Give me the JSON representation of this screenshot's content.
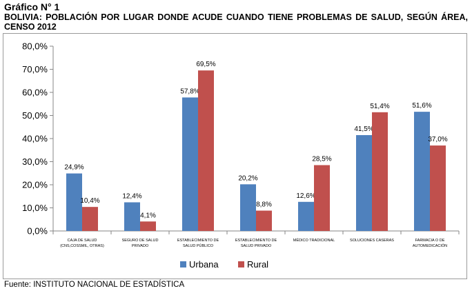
{
  "header": {
    "label": "Gráfico N° 1",
    "title": "BOLIVIA: POBLACIÓN POR LUGAR DONDE ACUDE CUANDO TIENE PROBLEMAS DE SALUD, SEGÚN ÁREA, CENSO 2012"
  },
  "source": "Fuente: INSTITUTO NACIONAL DE ESTADÍSTICA",
  "chart_data": {
    "type": "bar",
    "categories": [
      [
        "CAJA DE SALUD",
        "(CNS,COSSMIL, OTRAS)"
      ],
      [
        "SEGURO DE SALUD",
        "PRIVADO"
      ],
      [
        "ESTABLECIMIENTO DE",
        "SALUD PÚBLICO"
      ],
      [
        "ESTABLECIMIENTO DE",
        "SALUD PRIVADO"
      ],
      [
        "MÉDICO TRADICIONAL"
      ],
      [
        "SOLUCIONES CASERAS"
      ],
      [
        "FARMACIA O DE",
        "AUTOMEDICACIÓN"
      ]
    ],
    "series": [
      {
        "name": "Urbana",
        "color": "#4f81bd",
        "values": [
          24.9,
          12.4,
          57.8,
          20.2,
          12.6,
          41.5,
          51.6
        ],
        "labels": [
          "24,9%",
          "12,4%",
          "57,8%",
          "20,2%",
          "12,6%",
          "41,5%",
          "51,6%"
        ]
      },
      {
        "name": "Rural",
        "color": "#c0504d",
        "values": [
          10.4,
          4.1,
          69.5,
          8.8,
          28.5,
          51.4,
          37.0
        ],
        "labels": [
          "10,4%",
          "4,1%",
          "69,5%",
          "8,8%",
          "28,5%",
          "51,4%",
          "37,0%"
        ]
      }
    ],
    "yticks": [
      0,
      10,
      20,
      30,
      40,
      50,
      60,
      70,
      80
    ],
    "ytick_labels": [
      "0,0%",
      "10,0%",
      "20,0%",
      "30,0%",
      "40,0%",
      "50,0%",
      "60,0%",
      "70,0%",
      "80,0%"
    ],
    "ylim": [
      0,
      80
    ],
    "grid": false,
    "legend": "bottom-center"
  }
}
